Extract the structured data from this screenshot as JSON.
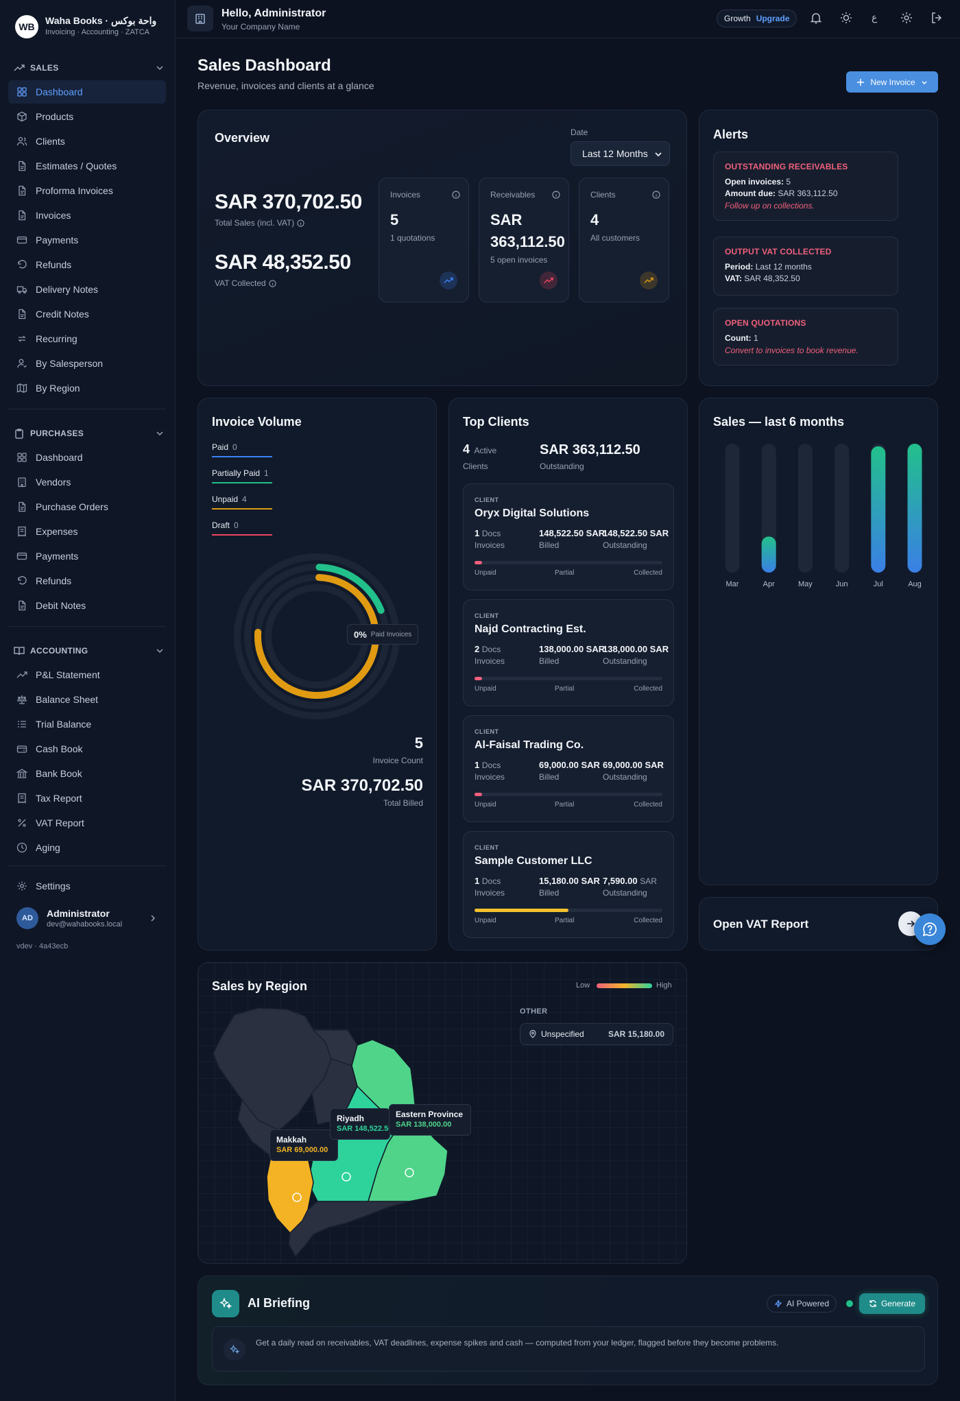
{
  "brand": {
    "logo": "WB",
    "name": "Waha Books · واحة بوكس",
    "subtitle": "Invoicing · Accounting · ZATCA"
  },
  "sidebar": {
    "sales": {
      "title": "SALES",
      "items": [
        "Dashboard",
        "Products",
        "Clients",
        "Estimates / Quotes",
        "Proforma Invoices",
        "Invoices",
        "Payments",
        "Refunds",
        "Delivery Notes",
        "Credit Notes",
        "Recurring",
        "By Salesperson",
        "By Region"
      ]
    },
    "purchases": {
      "title": "PURCHASES",
      "items": [
        "Dashboard",
        "Vendors",
        "Purchase Orders",
        "Expenses",
        "Payments",
        "Refunds",
        "Debit Notes"
      ]
    },
    "accounting": {
      "title": "ACCOUNTING",
      "items": [
        "P&L Statement",
        "Balance Sheet",
        "Trial Balance",
        "Cash Book",
        "Bank Book",
        "Tax Report",
        "VAT Report",
        "Aging"
      ]
    },
    "settings": "Settings",
    "user": {
      "initials": "AD",
      "name": "Administrator",
      "email": "dev@wahabooks.local"
    },
    "version": "vdev · 4a43ecb"
  },
  "topbar": {
    "greeting": "Hello, Administrator",
    "company": "Your Company Name",
    "plan": "Growth",
    "upgrade": "Upgrade",
    "lang": "ع"
  },
  "page": {
    "title": "Sales Dashboard",
    "subtitle": "Revenue, invoices and clients at a glance",
    "new_invoice": "New Invoice"
  },
  "overview": {
    "title": "Overview",
    "date_label": "Date",
    "date_value": "Last 12 Months",
    "total_sales": "SAR 370,702.50",
    "total_sales_label": "Total Sales (incl. VAT)",
    "vat": "SAR 48,352.50",
    "vat_label": "VAT Collected",
    "kpis": [
      {
        "label": "Invoices",
        "value": "5",
        "sub": "1 quotations",
        "color": "#3b82f6"
      },
      {
        "label": "Receivables",
        "value": "SAR 363,112.50",
        "sub": "5 open invoices",
        "color": "#ef4461"
      },
      {
        "label": "Clients",
        "value": "4",
        "sub": "All customers",
        "color": "#d99a14"
      }
    ]
  },
  "alerts": {
    "title": "Alerts",
    "items": [
      {
        "title": "OUTSTANDING RECEIVABLES",
        "lines": [
          [
            "Open invoices:",
            "5"
          ],
          [
            "Amount due:",
            "SAR 363,112.50"
          ]
        ],
        "note": "Follow up on collections."
      },
      {
        "title": "OUTPUT VAT COLLECTED",
        "lines": [
          [
            "Period:",
            "Last 12 months"
          ],
          [
            "VAT:",
            "SAR 48,352.50"
          ]
        ],
        "note": ""
      },
      {
        "title": "OPEN QUOTATIONS",
        "lines": [
          [
            "Count:",
            "1"
          ]
        ],
        "note": "Convert to invoices to book revenue."
      }
    ]
  },
  "invoice_volume": {
    "title": "Invoice Volume",
    "legend": [
      {
        "label": "Paid",
        "value": "0",
        "color": "#3b82f6"
      },
      {
        "label": "Partially Paid",
        "value": "1",
        "color": "#22c08a"
      },
      {
        "label": "Unpaid",
        "value": "4",
        "color": "#e09b12"
      },
      {
        "label": "Draft",
        "value": "0",
        "color": "#ef4461"
      }
    ],
    "center_pct": "0%",
    "center_label": "Paid Invoices",
    "count": "5",
    "count_label": "Invoice Count",
    "total": "SAR 370,702.50",
    "total_label": "Total Billed"
  },
  "top_clients": {
    "title": "Top Clients",
    "active_count": "4",
    "active_label": "Active",
    "clients_label": "Clients",
    "outstanding": "SAR 363,112.50",
    "outstanding_label": "Outstanding",
    "tag": "CLIENT",
    "docs_suffix": "Docs",
    "invoices_label": "Invoices",
    "billed_label": "Billed",
    "out_label": "Outstanding",
    "progress_labels": [
      "Unpaid",
      "Partial",
      "Collected"
    ],
    "list": [
      {
        "name": "Oryx Digital Solutions",
        "docs": "1",
        "billed": "148,522.50 SAR",
        "outstanding": "148,522.50 SAR",
        "progress": 0.04,
        "color": "#f0607a"
      },
      {
        "name": "Najd Contracting Est.",
        "docs": "2",
        "billed": "138,000.00 SAR",
        "outstanding": "138,000.00 SAR",
        "progress": 0.04,
        "color": "#f0607a"
      },
      {
        "name": "Al-Faisal Trading Co.",
        "docs": "1",
        "billed": "69,000.00 SAR",
        "outstanding": "69,000.00 SAR",
        "progress": 0.04,
        "color": "#f0607a"
      },
      {
        "name": "Sample Customer LLC",
        "docs": "1",
        "billed": "15,180.00 SAR",
        "outstanding": "7,590.00",
        "outstanding_unit": "SAR",
        "progress": 0.5,
        "color": "#f2c12e"
      }
    ]
  },
  "sales_6m": {
    "title": "Sales — last 6 months",
    "chart_data": {
      "type": "bar",
      "categories": [
        "Mar",
        "Apr",
        "May",
        "Jun",
        "Jul",
        "Aug"
      ],
      "values": [
        0,
        28,
        0,
        0,
        98,
        100
      ],
      "ylim": [
        0,
        100
      ]
    }
  },
  "vat_report": {
    "label": "Open VAT Report"
  },
  "region": {
    "title": "Sales by Region",
    "low": "Low",
    "high": "High",
    "other_label": "OTHER",
    "other": [
      {
        "name": "Unspecified",
        "value": "SAR 15,180.00"
      }
    ],
    "regions": [
      {
        "name": "Riyadh",
        "value": "SAR 148,522.50",
        "color": "#2ed39b"
      },
      {
        "name": "Eastern Province",
        "value": "SAR 138,000.00",
        "color": "#4fd48a"
      },
      {
        "name": "Makkah",
        "value": "SAR 69,000.00",
        "color": "#f4b324"
      }
    ]
  },
  "ai": {
    "title": "AI Briefing",
    "powered": "AI Powered",
    "generate": "Generate",
    "text": "Get a daily read on receivables, VAT deadlines, expense spikes and cash — computed from your ledger, flagged before they become problems."
  }
}
